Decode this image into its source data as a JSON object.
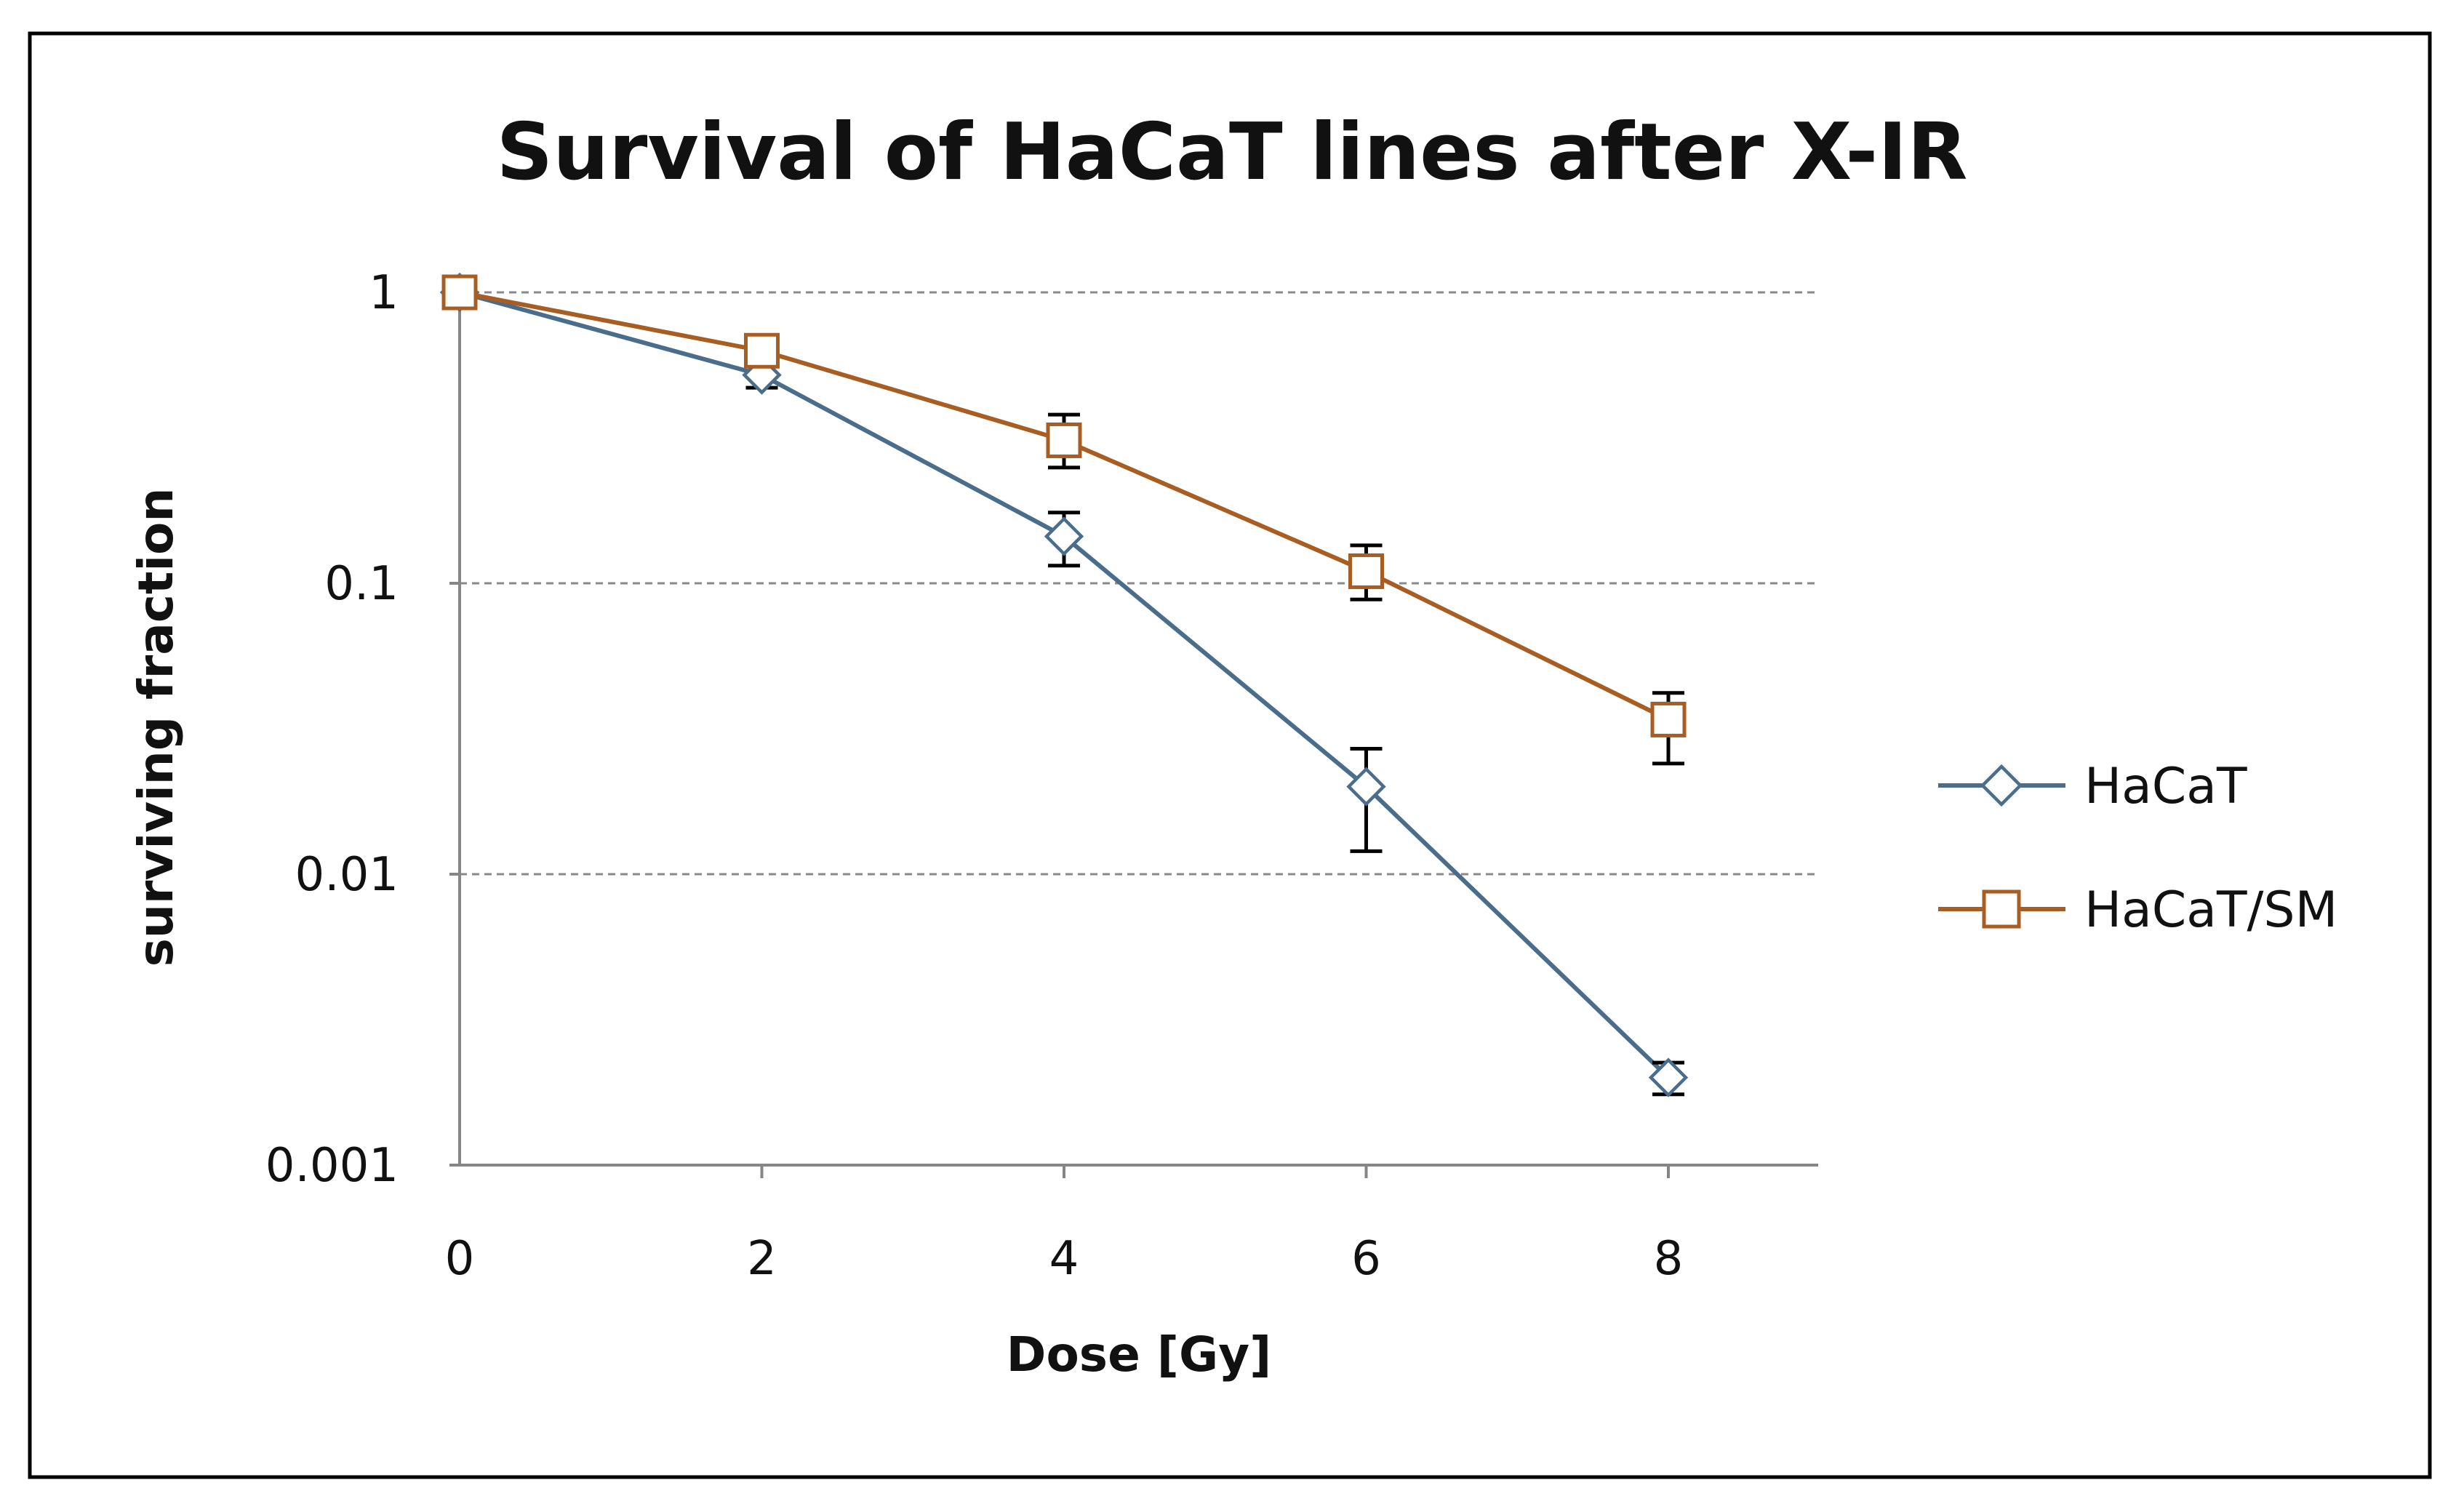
{
  "chart_data": {
    "type": "line",
    "title": "Survival of HaCaT lines after X-IR",
    "xlabel": "Dose [Gy]",
    "ylabel": "surviving fraction",
    "x": [
      0,
      2,
      4,
      6,
      8
    ],
    "x_ticks": [
      "0",
      "2",
      "4",
      "6",
      "8"
    ],
    "xlim": [
      0,
      9
    ],
    "y_scale": "log",
    "ylim": [
      0.001,
      1
    ],
    "y_ticks": [
      {
        "value": 1,
        "label": "1"
      },
      {
        "value": 0.1,
        "label": "0.1"
      },
      {
        "value": 0.01,
        "label": "0.01"
      },
      {
        "value": 0.001,
        "label": "0.001"
      }
    ],
    "grid": "horizontal dashed",
    "legend_position": "right",
    "series": [
      {
        "name": "HaCaT",
        "marker": "diamond",
        "color": "#4a6d8c",
        "values": [
          1,
          0.52,
          0.145,
          0.02,
          0.002
        ],
        "err_low": [
          null,
          0.47,
          0.115,
          0.012,
          0.00175
        ],
        "err_high": [
          null,
          0.56,
          0.175,
          0.027,
          0.00225
        ]
      },
      {
        "name": "HaCaT/SM",
        "marker": "square",
        "color": "#a85e22",
        "values": [
          1,
          0.63,
          0.31,
          0.11,
          0.034
        ],
        "err_low": [
          null,
          0.57,
          0.25,
          0.088,
          0.024
        ],
        "err_high": [
          null,
          0.7,
          0.38,
          0.135,
          0.042
        ]
      }
    ]
  }
}
